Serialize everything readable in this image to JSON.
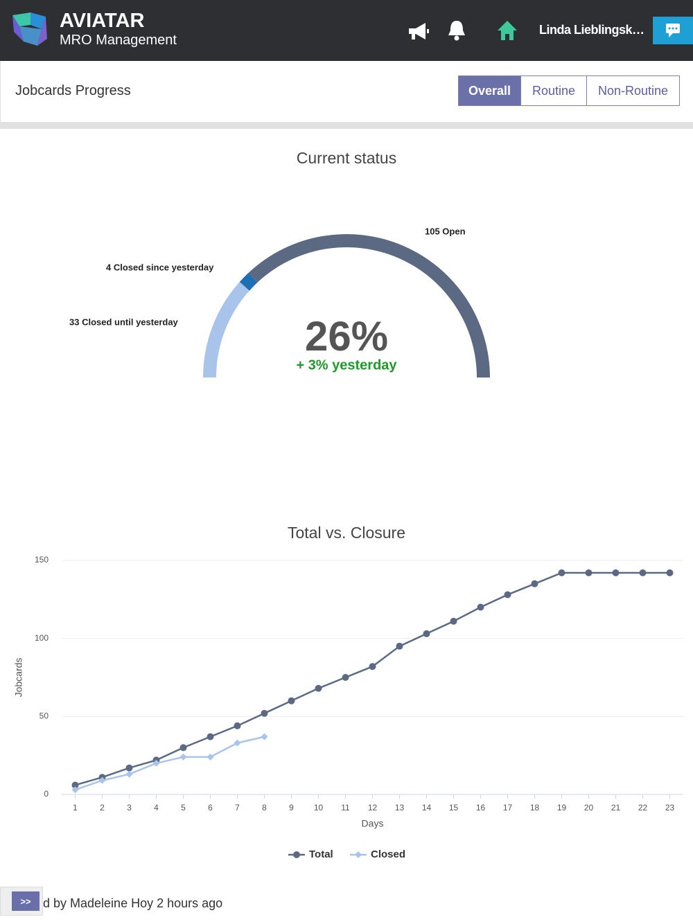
{
  "header": {
    "brand": "AVIATAR",
    "subtitle": "MRO Management",
    "user": "Linda Lieblingsk…"
  },
  "section": {
    "title": "Jobcards Progress",
    "tabs": [
      "Overall",
      "Routine",
      "Non-Routine"
    ],
    "active_tab": 0
  },
  "chart_data": [
    {
      "type": "gauge",
      "title": "Current status",
      "values": [
        33,
        4,
        105
      ],
      "value_labels": [
        "33 Closed until yesterday",
        "4 Closed since yesterday",
        "105 Open"
      ],
      "colors": [
        "#a9c4ea",
        "#1f6fb5",
        "#5b6a82"
      ],
      "center_label": "26%",
      "center_sublabel": "+ 3% yesterday"
    },
    {
      "type": "line",
      "title": "Total vs. Closure",
      "x_label": "Days",
      "y_label": "Jobcards",
      "x": [
        1,
        2,
        3,
        4,
        5,
        6,
        7,
        8,
        9,
        10,
        11,
        12,
        13,
        14,
        15,
        16,
        17,
        18,
        19,
        20,
        21,
        22,
        23
      ],
      "xlim": [
        0.5,
        23.5
      ],
      "xticks": [
        1,
        2,
        3,
        4,
        5,
        6,
        7,
        8,
        9,
        10,
        11,
        12,
        13,
        14,
        15,
        16,
        17,
        18,
        19,
        20,
        21,
        22,
        23
      ],
      "ylim": [
        0,
        150
      ],
      "yticks": [
        0,
        50,
        100,
        150
      ],
      "grid": true,
      "legend": "bottom",
      "series": [
        {
          "name": "Total",
          "color": "#5b6a82",
          "marker": "circle",
          "values": [
            6,
            11,
            17,
            22,
            30,
            37,
            44,
            52,
            60,
            68,
            75,
            82,
            95,
            103,
            111,
            120,
            128,
            135,
            142,
            142,
            142,
            142,
            142
          ]
        },
        {
          "name": "Closed",
          "color": "#a9c4ea",
          "marker": "diamond",
          "values": [
            3,
            9,
            13,
            20,
            24,
            24,
            33,
            37,
            null,
            null,
            null,
            null,
            null,
            null,
            null,
            null,
            null,
            null,
            null,
            null,
            null,
            null,
            null
          ]
        }
      ]
    }
  ],
  "footer": {
    "button": ">>",
    "text": "d by Madeleine Hoy 2 hours ago"
  }
}
